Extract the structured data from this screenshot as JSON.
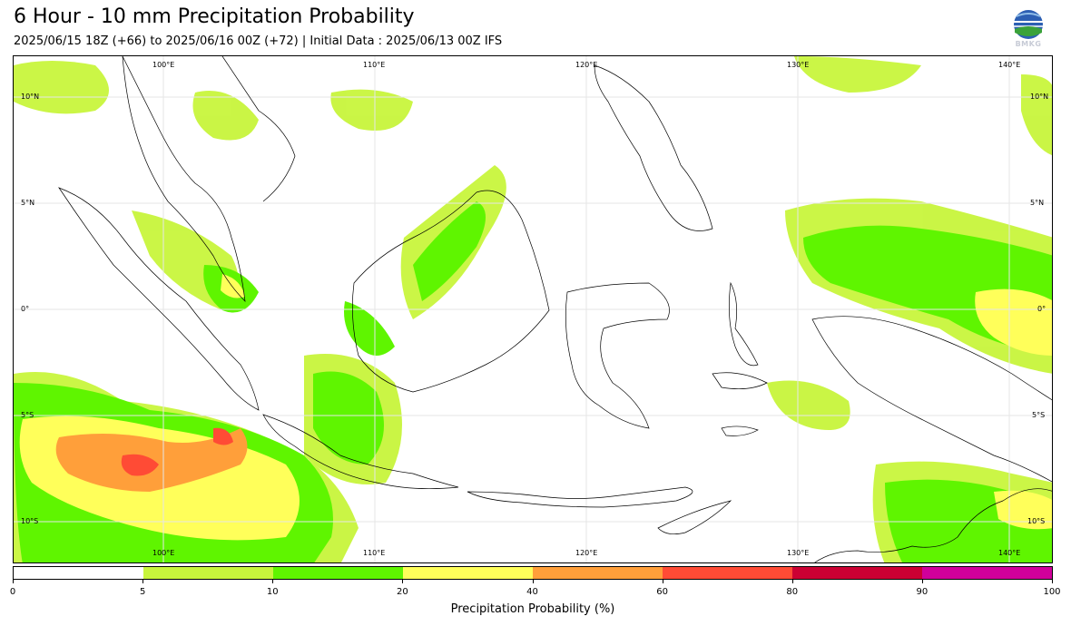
{
  "header": {
    "title": "6 Hour - 10 mm Precipitation Probability",
    "subtitle": "2025/06/15 18Z (+66) to 2025/06/16 00Z (+72) | Initial Data : 2025/06/13 00Z IFS",
    "logo_text": "BMKG"
  },
  "map": {
    "lon_labels": [
      "100°E",
      "110°E",
      "120°E",
      "130°E",
      "140°E"
    ],
    "lat_labels": [
      "10°N",
      "5°N",
      "0°",
      "5°S",
      "10°S"
    ],
    "lon_range": [
      92.5,
      141.5
    ],
    "lat_range": [
      -12,
      12
    ]
  },
  "colorbar": {
    "label": "Precipitation Probability (%)",
    "ticks": [
      "0",
      "5",
      "10",
      "20",
      "40",
      "60",
      "80",
      "90",
      "100"
    ],
    "colors": [
      "#ffffff",
      "#c8f53c",
      "#5ff500",
      "#ffff5a",
      "#ff9f3a",
      "#ff4b35",
      "#cc0033",
      "#d1009b"
    ]
  }
}
